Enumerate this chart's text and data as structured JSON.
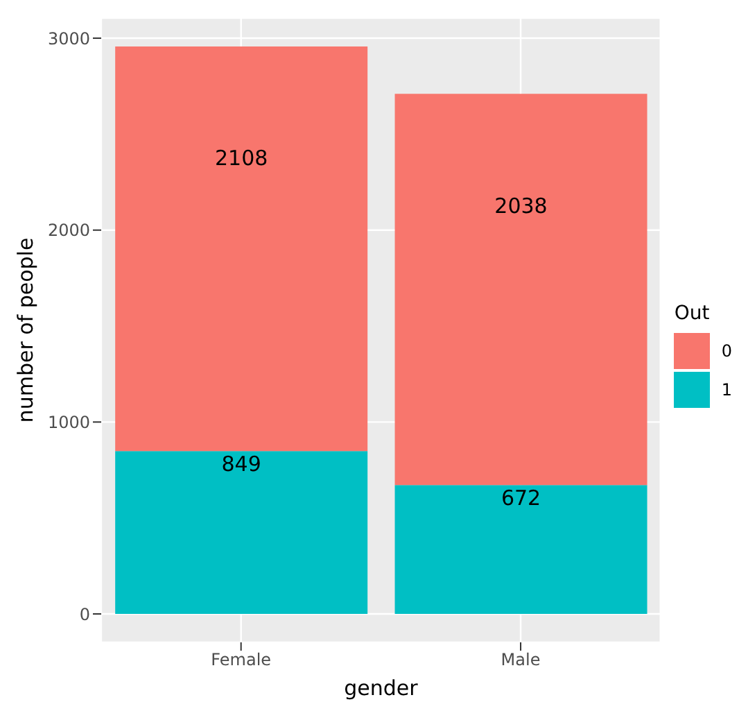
{
  "chart_data": {
    "type": "bar",
    "stacked": true,
    "xlabel": "gender",
    "ylabel": "number of people",
    "legend_title": "Out",
    "legend": "right",
    "categories": [
      "Female",
      "Male"
    ],
    "series": [
      {
        "name": "1",
        "color": "#00bfc4",
        "values": [
          849,
          672
        ]
      },
      {
        "name": "0",
        "color": "#f8766d",
        "values": [
          2108,
          2038
        ]
      }
    ],
    "ylim": [
      -148,
      3105
    ],
    "yticks": [
      0,
      1000,
      2000,
      3000
    ],
    "grid": true,
    "data_labels": true
  }
}
